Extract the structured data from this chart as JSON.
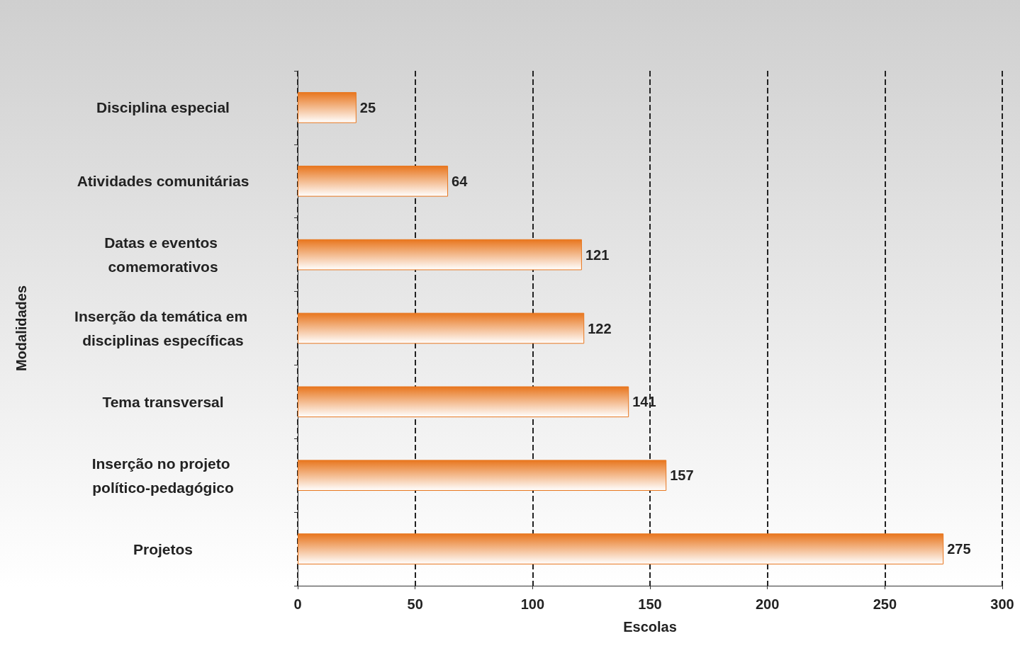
{
  "chart_data": {
    "type": "bar",
    "orientation": "horizontal",
    "xlabel": "Escolas",
    "ylabel": "Modalidades",
    "categories": [
      "Disciplina especial",
      "Atividades comunitárias",
      "Datas e eventos comemorativos",
      "Inserção da temática em disciplinas específicas",
      "Tema transversal",
      "Inserção no projeto político-pedagógico",
      "Projetos"
    ],
    "values": [
      25,
      64,
      121,
      122,
      141,
      157,
      275
    ],
    "color": "#e8761e",
    "xlim": [
      0,
      300
    ],
    "xticks": [
      0,
      50,
      100,
      150,
      200,
      250,
      300
    ],
    "grid": "x",
    "data_labels": true
  }
}
